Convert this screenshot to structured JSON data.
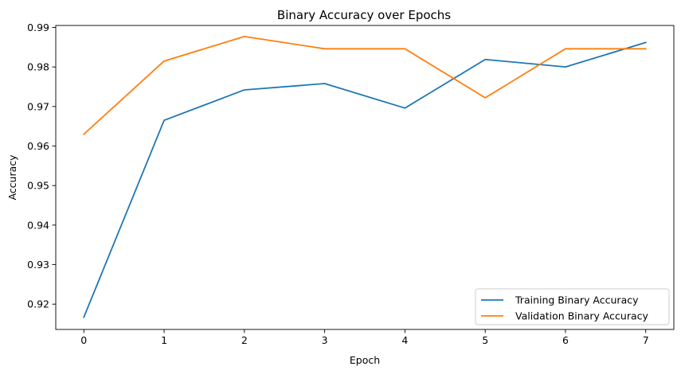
{
  "chart_data": {
    "type": "line",
    "title": "Binary Accuracy over Epochs",
    "xlabel": "Epoch",
    "ylabel": "Accuracy",
    "x": [
      0,
      1,
      2,
      3,
      4,
      5,
      6,
      7
    ],
    "xticks": [
      0,
      1,
      2,
      3,
      4,
      5,
      6,
      7
    ],
    "yticks": [
      0.92,
      0.93,
      0.94,
      0.95,
      0.96,
      0.97,
      0.98,
      0.99
    ],
    "xlim": [
      -0.35,
      7.35
    ],
    "ylim": [
      0.9136,
      0.9905
    ],
    "grid": false,
    "legend_position": "lower-right",
    "series": [
      {
        "name": "Training Binary Accuracy",
        "color": "#1f77b4",
        "values": [
          0.9167,
          0.9665,
          0.9742,
          0.9758,
          0.9696,
          0.9819,
          0.98,
          0.9862
        ]
      },
      {
        "name": "Validation Binary Accuracy",
        "color": "#ff7f0e",
        "values": [
          0.963,
          0.9815,
          0.9877,
          0.9846,
          0.9846,
          0.9722,
          0.9846,
          0.9846
        ]
      }
    ]
  }
}
